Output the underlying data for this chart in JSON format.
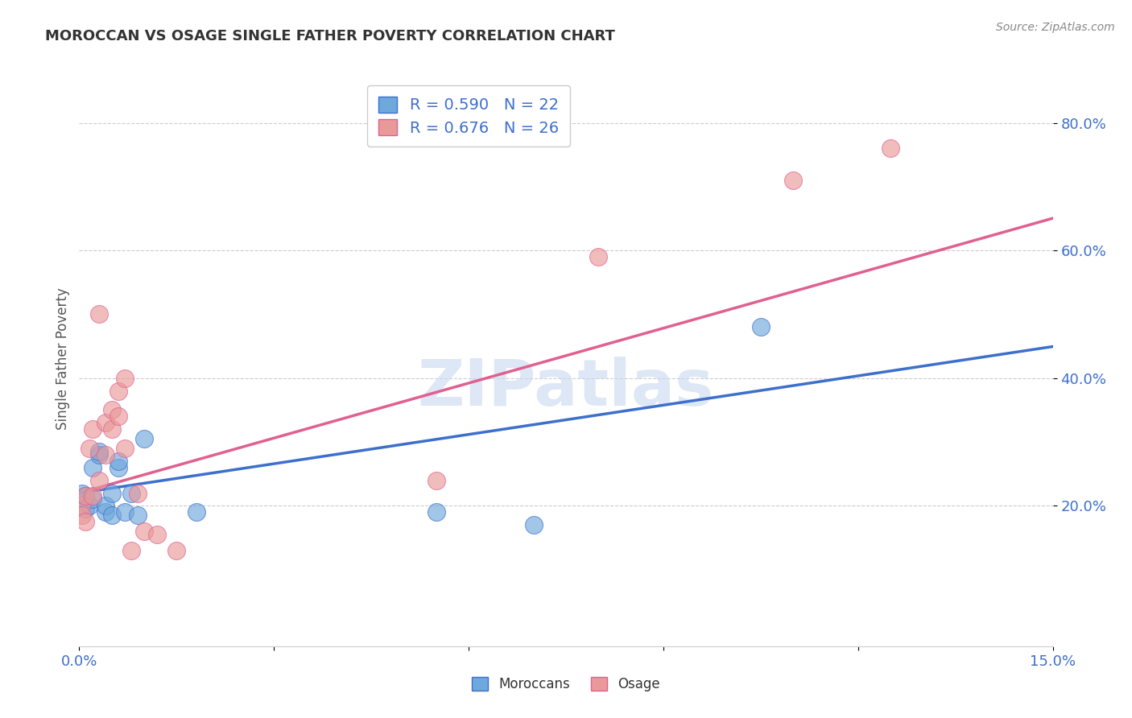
{
  "title": "MOROCCAN VS OSAGE SINGLE FATHER POVERTY CORRELATION CHART",
  "source": "Source: ZipAtlas.com",
  "ylabel": "Single Father Poverty",
  "xlabel": "",
  "xlim": [
    0.0,
    0.15
  ],
  "ylim": [
    -0.02,
    0.88
  ],
  "right_yticks": [
    0.2,
    0.4,
    0.6,
    0.8
  ],
  "right_yticklabels": [
    "20.0%",
    "40.0%",
    "60.0%",
    "80.0%"
  ],
  "xticks": [
    0.0,
    0.03,
    0.06,
    0.09,
    0.12,
    0.15
  ],
  "xticklabels": [
    "0.0%",
    "",
    "",
    "",
    "",
    "15.0%"
  ],
  "moroccan_color": "#6fa8dc",
  "osage_color": "#ea9999",
  "moroccan_line_color": "#3d6fcc",
  "osage_line_color": "#e06090",
  "R_moroccan": 0.59,
  "N_moroccan": 22,
  "R_osage": 0.676,
  "N_osage": 26,
  "watermark": "ZIPatlas",
  "background_color": "#ffffff",
  "grid_color": "#cccccc",
  "moroccan_x": [
    0.0005,
    0.001,
    0.001,
    0.0015,
    0.002,
    0.002,
    0.003,
    0.003,
    0.004,
    0.004,
    0.005,
    0.005,
    0.006,
    0.006,
    0.007,
    0.008,
    0.009,
    0.01,
    0.018,
    0.055,
    0.07,
    0.105
  ],
  "moroccan_y": [
    0.22,
    0.215,
    0.195,
    0.2,
    0.21,
    0.26,
    0.28,
    0.285,
    0.19,
    0.2,
    0.185,
    0.22,
    0.26,
    0.27,
    0.19,
    0.22,
    0.185,
    0.305,
    0.19,
    0.19,
    0.17,
    0.48
  ],
  "osage_x": [
    0.0003,
    0.0005,
    0.001,
    0.001,
    0.0015,
    0.002,
    0.002,
    0.003,
    0.003,
    0.004,
    0.004,
    0.005,
    0.005,
    0.006,
    0.006,
    0.007,
    0.007,
    0.008,
    0.009,
    0.01,
    0.012,
    0.015,
    0.055,
    0.08,
    0.11,
    0.125
  ],
  "osage_y": [
    0.2,
    0.185,
    0.215,
    0.175,
    0.29,
    0.215,
    0.32,
    0.24,
    0.5,
    0.28,
    0.33,
    0.32,
    0.35,
    0.34,
    0.38,
    0.29,
    0.4,
    0.13,
    0.22,
    0.16,
    0.155,
    0.13,
    0.24,
    0.59,
    0.71,
    0.76
  ],
  "moroccan_slope": 1.53,
  "moroccan_intercept": 0.22,
  "osage_slope": 2.87,
  "osage_intercept": 0.22
}
